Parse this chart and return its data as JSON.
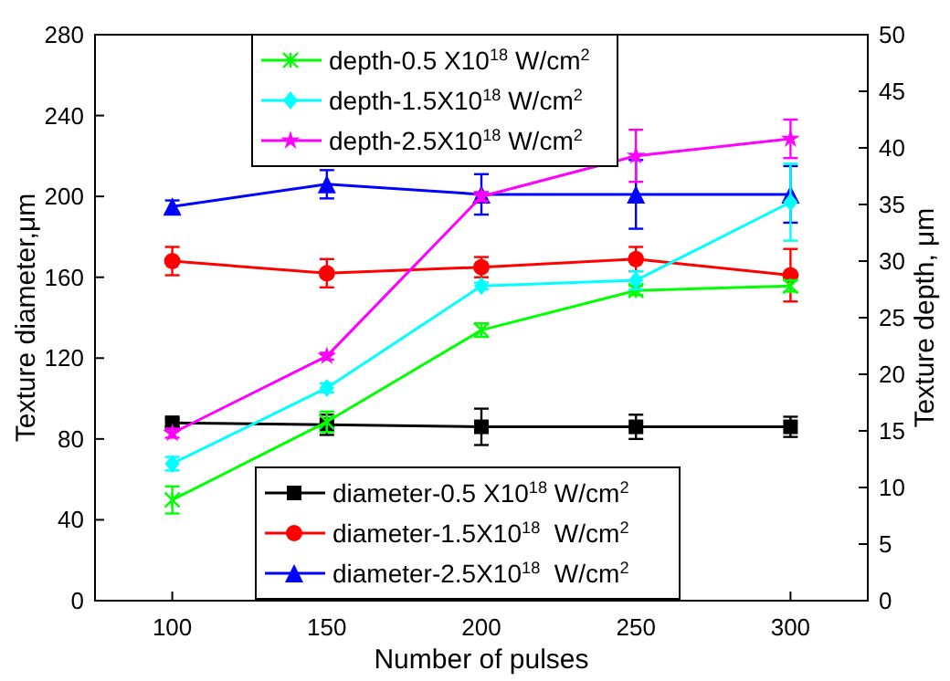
{
  "chart_data": {
    "type": "line",
    "xlabel": "Number of pulses",
    "ylabel": "Texture diameter,μm",
    "y2label": "Texture depth, μm",
    "x": [
      100,
      150,
      200,
      250,
      300
    ],
    "xlim": [
      75,
      325
    ],
    "xticks": [
      100,
      150,
      200,
      250,
      300
    ],
    "ylim": [
      0,
      280
    ],
    "yticks": [
      0,
      40,
      80,
      120,
      160,
      200,
      240,
      280
    ],
    "y2lim": [
      0,
      50
    ],
    "y2ticks": [
      0,
      5,
      10,
      15,
      20,
      25,
      30,
      35,
      40,
      45,
      50
    ],
    "legend": "top",
    "grid": false,
    "series": [
      {
        "name": "diameter-0.5 X10$^{18}$ W/cm$^{2}$",
        "color": "#000000",
        "marker": "square",
        "values": [
          88,
          87,
          86,
          86,
          86
        ],
        "errors": [
          2,
          5,
          9,
          6,
          5
        ]
      },
      {
        "name": "diameter-1.5X10$^{18}$  W/cm$^{2}$",
        "color": "#ff0000",
        "marker": "circle",
        "values": [
          168,
          162,
          165,
          169,
          161
        ],
        "errors": [
          7,
          7,
          5,
          6,
          13
        ]
      },
      {
        "name": "diameter-2.5X10$^{18}$  W/cm$^{2}$",
        "color": "#0000ff",
        "marker": "triangle",
        "values": [
          195,
          206,
          201,
          201,
          201
        ],
        "errors": [
          3,
          7,
          10,
          17,
          14
        ]
      },
      {
        "name": "depth-0.5 X10$^{18}$ W/cm$^{2}$",
        "color": "#00ff00",
        "marker": "cross",
        "axis": "y2",
        "values": [
          8.9,
          15.8,
          23.9,
          27.4,
          27.8
        ],
        "errors": [
          1.2,
          0.9,
          0.6,
          0.4,
          0.5
        ]
      },
      {
        "name": "depth-1.5X10$^{18}$ W/cm$^{2}$",
        "color": "#00ffff",
        "marker": "diamond",
        "axis": "y2",
        "values": [
          12.1,
          18.8,
          27.8,
          28.3,
          35.2
        ],
        "errors": [
          0.6,
          0.4,
          0.3,
          0.8,
          3.4
        ]
      },
      {
        "name": "depth-2.5X10$^{18}$ W/cm$^{2}$",
        "color": "#ff00ff",
        "marker": "star",
        "axis": "y2",
        "values": [
          14.8,
          21.6,
          35.7,
          39.3,
          40.8
        ],
        "errors": [
          0.4,
          0.3,
          0.4,
          2.3,
          1.7
        ]
      }
    ]
  }
}
